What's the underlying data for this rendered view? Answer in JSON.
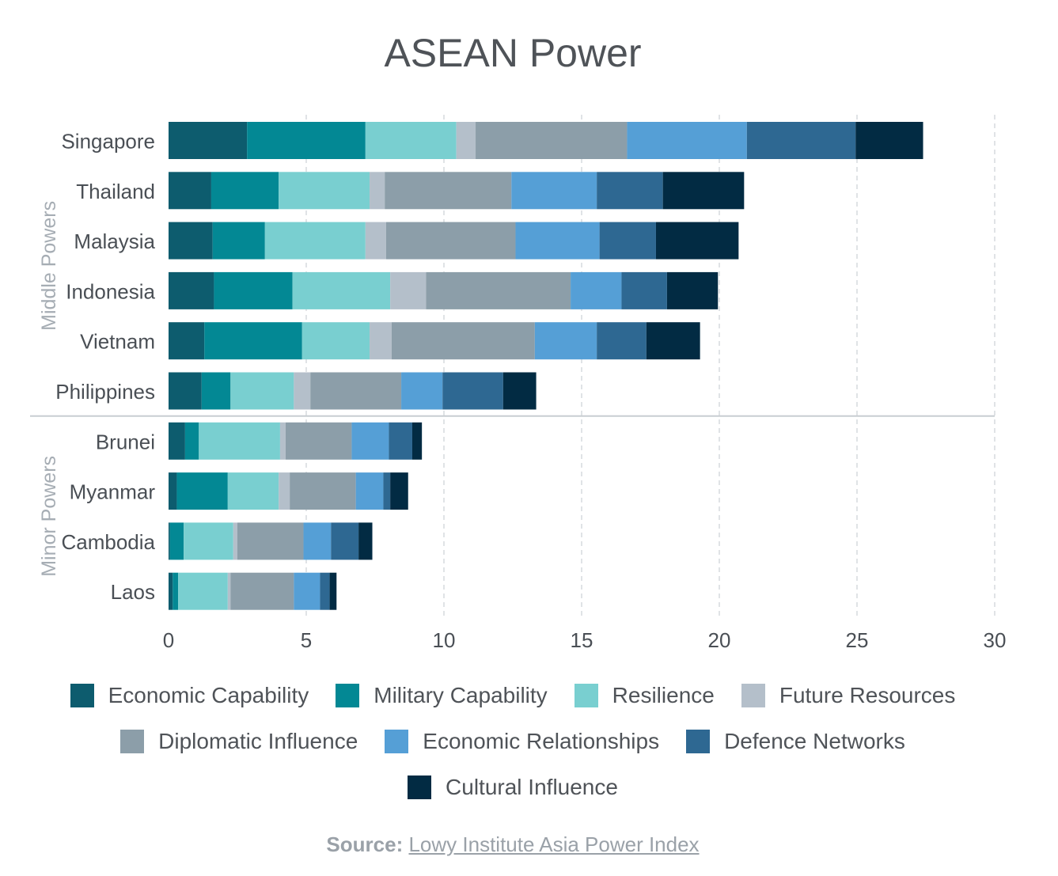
{
  "chart_data": {
    "type": "bar",
    "orientation": "horizontal",
    "stacked": true,
    "title": "ASEAN Power",
    "categories": [
      "Singapore",
      "Thailand",
      "Malaysia",
      "Indonesia",
      "Vietnam",
      "Philippines",
      "Brunei",
      "Myanmar",
      "Cambodia",
      "Laos"
    ],
    "groups": [
      {
        "name": "Middle Powers",
        "categories": [
          "Singapore",
          "Thailand",
          "Malaysia",
          "Indonesia",
          "Vietnam",
          "Philippines"
        ]
      },
      {
        "name": "Minor Powers",
        "categories": [
          "Brunei",
          "Myanmar",
          "Cambodia",
          "Laos"
        ]
      }
    ],
    "series": [
      {
        "name": "Economic Capability",
        "color": "#0d5c6e",
        "values": [
          2.85,
          1.55,
          1.6,
          1.65,
          1.3,
          1.2,
          0.6,
          0.3,
          0.05,
          0.15
        ]
      },
      {
        "name": "Military Capability",
        "color": "#038894",
        "values": [
          4.3,
          2.45,
          1.9,
          2.85,
          3.55,
          1.05,
          0.5,
          1.85,
          0.5,
          0.2
        ]
      },
      {
        "name": "Resilience",
        "color": "#79cfd0",
        "values": [
          3.3,
          3.3,
          3.65,
          3.55,
          2.45,
          2.3,
          2.95,
          1.85,
          1.8,
          1.8
        ]
      },
      {
        "name": "Future Resources",
        "color": "#b4bfca",
        "values": [
          0.7,
          0.55,
          0.75,
          1.3,
          0.8,
          0.6,
          0.2,
          0.4,
          0.15,
          0.1
        ]
      },
      {
        "name": "Diplomatic Influence",
        "color": "#8c9ea9",
        "values": [
          5.5,
          4.6,
          4.7,
          5.25,
          5.2,
          3.3,
          2.4,
          2.4,
          2.4,
          2.3
        ]
      },
      {
        "name": "Economic Relationships",
        "color": "#559fd6",
        "values": [
          4.35,
          3.1,
          3.05,
          1.85,
          2.25,
          1.5,
          1.35,
          1.0,
          1.0,
          0.95
        ]
      },
      {
        "name": "Defence Networks",
        "color": "#2e6892",
        "values": [
          3.95,
          2.4,
          2.05,
          1.65,
          1.8,
          2.2,
          0.85,
          0.25,
          1.0,
          0.35
        ]
      },
      {
        "name": "Cultural Influence",
        "color": "#022b43",
        "values": [
          2.45,
          2.95,
          3.0,
          1.85,
          1.95,
          1.2,
          0.35,
          0.65,
          0.5,
          0.25
        ]
      }
    ],
    "xlim": [
      0,
      30
    ],
    "xticks": [
      0,
      5,
      10,
      15,
      20,
      25,
      30
    ],
    "grid": "vertical dashed",
    "legend_position": "bottom",
    "source_label": "Source:",
    "source_text": "Lowy Institute Asia Power Index"
  }
}
